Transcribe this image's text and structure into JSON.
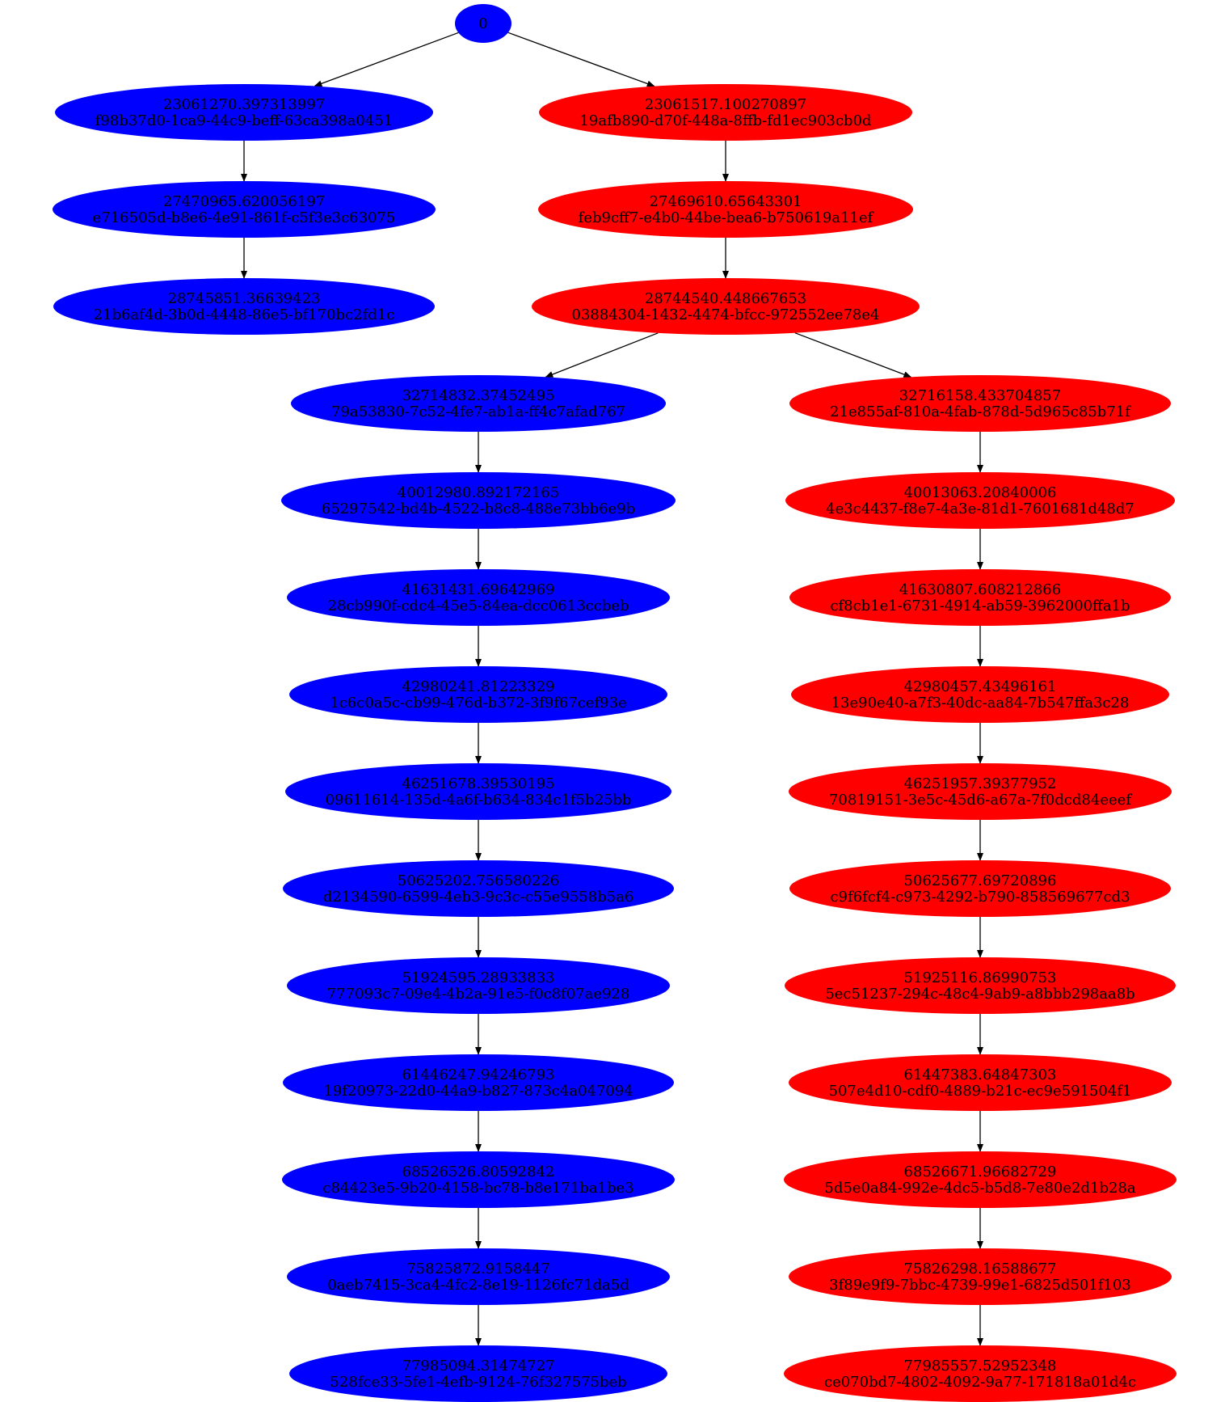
{
  "root": {
    "label": "0",
    "color": "blue"
  },
  "colors": {
    "blue": "#0000ff",
    "red": "#ff0000",
    "edge": "#000000",
    "text": "#000000"
  },
  "top_branches": [
    {
      "color": "blue",
      "nodes": [
        {
          "value": "23061270.397313997",
          "id": "f98b37d0-1ca9-44c9-beff-63ca398a0451"
        },
        {
          "value": "27470965.620056197",
          "id": "e716505d-b8e6-4e91-861f-c5f3e3c63075"
        },
        {
          "value": "28745851.36639423",
          "id": "21b6af4d-3b0d-4448-86e5-bf170bc2fd1c"
        }
      ]
    },
    {
      "color": "red",
      "nodes": [
        {
          "value": "23061517.100270897",
          "id": "19afb890-d70f-448a-8ffb-fd1ec903cb0d"
        },
        {
          "value": "27469610.65643301",
          "id": "feb9cff7-e4b0-44be-bea6-b750619a11ef"
        },
        {
          "value": "28744540.448667653",
          "id": "03884304-1432-4474-bfcc-972552ee78e4"
        }
      ]
    }
  ],
  "sub_branches": [
    {
      "color": "blue",
      "nodes": [
        {
          "value": "32714832.37452495",
          "id": "79a53830-7c52-4fe7-ab1a-ff4c7afad767"
        },
        {
          "value": "40012980.892172165",
          "id": "65297542-bd4b-4522-b8c8-488e73bb6e9b"
        },
        {
          "value": "41631431.69642969",
          "id": "28cb990f-cdc4-45e5-84ea-dcc0613ccbeb"
        },
        {
          "value": "42980241.81223329",
          "id": "1c6c0a5c-cb99-476d-b372-3f9f67cef93e"
        },
        {
          "value": "46251678.39530195",
          "id": "09611614-135d-4a6f-b634-834c1f5b25bb"
        },
        {
          "value": "50625202.756580226",
          "id": "d2134590-6599-4eb3-9c3c-c55e9558b5a6"
        },
        {
          "value": "51924595.28933833",
          "id": "777093c7-09e4-4b2a-91e5-f0c8f07ae928"
        },
        {
          "value": "61446247.94246793",
          "id": "19f20973-22d0-44a9-b827-873c4a047094"
        },
        {
          "value": "68526526.80592842",
          "id": "c84423e5-9b20-4158-bc78-b8e171ba1be3"
        },
        {
          "value": "75825872.9158447",
          "id": "0aeb7415-3ca4-4fc2-8e19-1126fc71da5d"
        },
        {
          "value": "77985094.31474727",
          "id": "528fce33-5fe1-4efb-9124-76f327575beb"
        }
      ]
    },
    {
      "color": "red",
      "nodes": [
        {
          "value": "32716158.433704857",
          "id": "21e855af-810a-4fab-878d-5d965c85b71f"
        },
        {
          "value": "40013063.20840006",
          "id": "4e3c4437-f8e7-4a3e-81d1-7601681d48d7"
        },
        {
          "value": "41630807.608212866",
          "id": "cf8cb1e1-6731-4914-ab59-3962000ffa1b"
        },
        {
          "value": "42980457.43496161",
          "id": "13e90e40-a7f3-40dc-aa84-7b547ffa3c28"
        },
        {
          "value": "46251957.39377952",
          "id": "70819151-3e5c-45d6-a67a-7f0dcd84eeef"
        },
        {
          "value": "50625677.69720896",
          "id": "c9f6fcf4-c973-4292-b790-858569677cd3"
        },
        {
          "value": "51925116.86990753",
          "id": "5ec51237-294c-48c4-9ab9-a8bbb298aa8b"
        },
        {
          "value": "61447383.64847303",
          "id": "507e4d10-cdf0-4889-b21c-ec9e591504f1"
        },
        {
          "value": "68526671.96682729",
          "id": "5d5e0a84-992e-4dc5-b5d8-7e80e2d1b28a"
        },
        {
          "value": "75826298.16588677",
          "id": "3f89e9f9-7bbc-4739-99e1-6825d501f103"
        },
        {
          "value": "77985557.52952348",
          "id": "ce070bd7-4802-4092-9a77-171818a01d4c"
        }
      ]
    }
  ]
}
